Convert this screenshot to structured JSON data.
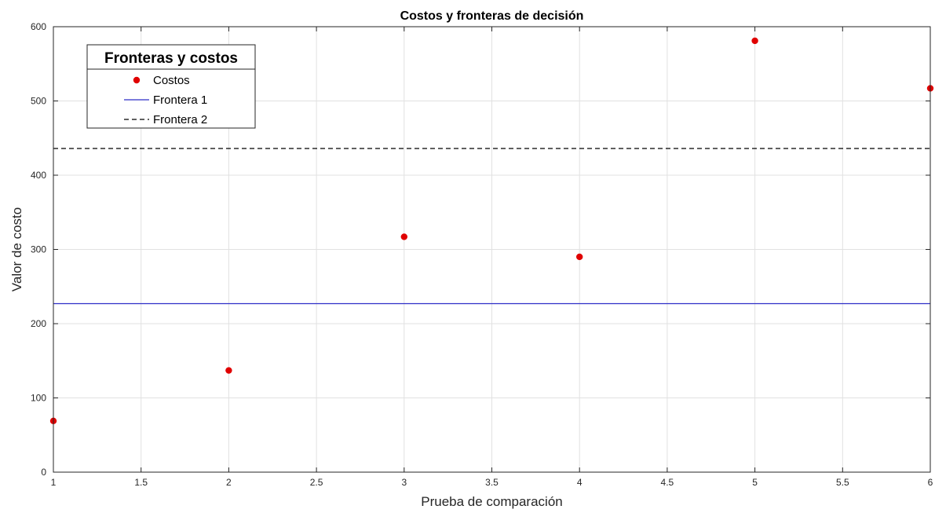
{
  "chart_data": {
    "type": "scatter",
    "title": "Costos y fronteras de decisión",
    "xlabel": "Prueba de comparación",
    "ylabel": "Valor de costo",
    "xlim": [
      1,
      6
    ],
    "ylim": [
      0,
      600
    ],
    "xticks": [
      1,
      1.5,
      2,
      2.5,
      3,
      3.5,
      4,
      4.5,
      5,
      5.5,
      6
    ],
    "yticks": [
      0,
      100,
      200,
      300,
      400,
      500,
      600
    ],
    "grid": true,
    "legend": {
      "title": "Fronteras y costos",
      "placement": "top-left"
    },
    "series": [
      {
        "name": "Costos",
        "kind": "scatter",
        "color": "#e00000",
        "x": [
          1,
          2,
          3,
          4,
          5,
          6
        ],
        "y": [
          69,
          137,
          317,
          290,
          581,
          517
        ]
      },
      {
        "name": "Frontera 1",
        "kind": "hline",
        "style": "solid",
        "color": "#2f2fc8",
        "y": 227
      },
      {
        "name": "Frontera 2",
        "kind": "hline",
        "style": "dashed",
        "color": "#000000",
        "y": 436
      }
    ]
  }
}
